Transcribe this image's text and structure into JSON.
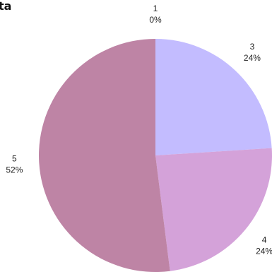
{
  "chart_data": {
    "type": "pie",
    "title": "ta",
    "slices": [
      {
        "label": "1",
        "value": 0,
        "percent_label": "0%",
        "color": "#c3bcf7"
      },
      {
        "label": "3",
        "value": 24,
        "percent_label": "24%",
        "color": "#c3bcff"
      },
      {
        "label": "4",
        "value": 24,
        "percent_label": "24%",
        "color": "#d4a2d9"
      },
      {
        "label": "5",
        "value": 52,
        "percent_label": "52%",
        "color": "#be84a5"
      }
    ],
    "legend": "none"
  }
}
